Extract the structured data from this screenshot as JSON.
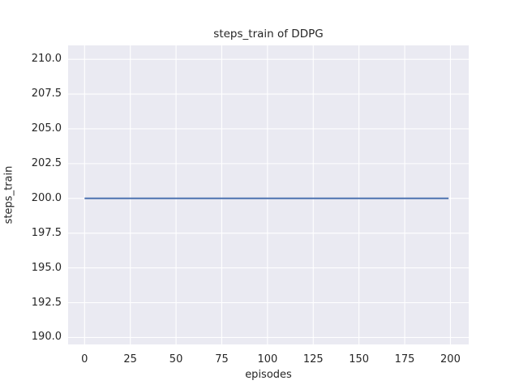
{
  "chart_data": {
    "type": "line",
    "title": "steps_train of DDPG",
    "xlabel": "episodes",
    "ylabel": "steps_train",
    "xlim": [
      -9,
      210
    ],
    "ylim": [
      189.5,
      211
    ],
    "xticks": [
      0,
      25,
      50,
      75,
      100,
      125,
      150,
      175,
      200
    ],
    "yticks": [
      190.0,
      192.5,
      195.0,
      197.5,
      200.0,
      202.5,
      205.0,
      207.5,
      210.0
    ],
    "ytick_decimals": 1,
    "grid": true,
    "legend_position": "none",
    "series": [
      {
        "name": "steps_train",
        "color": "#4c72b0",
        "x": [
          0,
          199
        ],
        "y": [
          200,
          200
        ]
      }
    ],
    "colors": {
      "figure_bg": "#ffffff",
      "plot_bg": "#eaeaf2",
      "grid": "#ffffff",
      "text": "#262626"
    }
  }
}
